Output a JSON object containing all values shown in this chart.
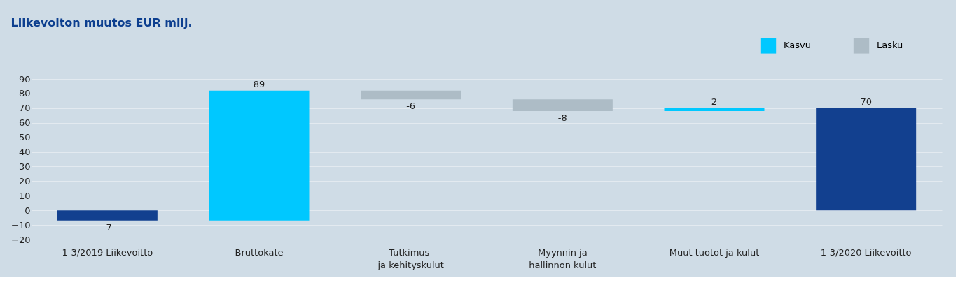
{
  "chart_data": {
    "type": "bar",
    "title": "Liikevoiton muutos EUR milj.",
    "categories": [
      "1-3/2019 Liikevoitto",
      "Bruttokate",
      "Tutkimus-\nja kehityskulut",
      "Myynnin ja\nhallinnon kulut",
      "Muut tuotot ja kulut",
      "1-3/2020 Liikevoitto"
    ],
    "series": [
      {
        "color": "#12408f",
        "values": [
          -7,
          null,
          null,
          null,
          null,
          70
        ],
        "base": [
          0,
          null,
          null,
          null,
          null,
          0
        ]
      },
      {
        "name": "Kasvu",
        "color": "#00c8ff",
        "values": [
          null,
          89,
          null,
          null,
          2,
          null
        ],
        "base": [
          null,
          -7,
          null,
          null,
          68,
          null
        ]
      },
      {
        "name": "Lasku",
        "color": "#adbcc6",
        "values": [
          null,
          null,
          -6,
          -8,
          null,
          null
        ],
        "base": [
          null,
          null,
          82,
          76,
          null,
          null
        ]
      }
    ],
    "ylim": [
      -20,
      90
    ],
    "yticks": [
      -20,
      -10,
      0,
      10,
      20,
      30,
      40,
      50,
      60,
      70,
      80,
      90
    ],
    "grid": "y",
    "legend": "top right",
    "data_labels": true
  }
}
